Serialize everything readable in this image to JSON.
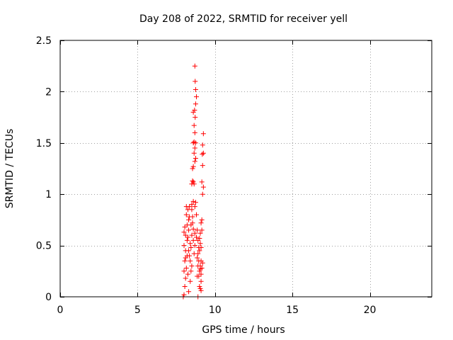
{
  "chart_data": {
    "type": "scatter",
    "title": "Day 208 of 2022, SRMTID for receiver yell",
    "xlabel": "GPS time / hours",
    "ylabel": "SRMTID / TECUs",
    "xlim": [
      0,
      24
    ],
    "ylim": [
      0,
      2.5
    ],
    "x_ticks": [
      0,
      5,
      10,
      15,
      20
    ],
    "x_tick_labels": [
      "0",
      "5",
      "10",
      "15",
      "20"
    ],
    "y_ticks": [
      0,
      0.5,
      1,
      1.5,
      2,
      2.5
    ],
    "y_tick_labels": [
      "0",
      "0.5",
      "1",
      "1.5",
      "2",
      "2.5"
    ],
    "grid": true,
    "marker": "+",
    "color": "#ff0000",
    "series": [
      {
        "name": "SRMTID",
        "points": [
          [
            7.95,
            0.0
          ],
          [
            8.0,
            0.02
          ],
          [
            8.05,
            0.1
          ],
          [
            8.1,
            0.18
          ],
          [
            8.0,
            0.25
          ],
          [
            8.15,
            0.28
          ],
          [
            8.05,
            0.35
          ],
          [
            8.2,
            0.4
          ],
          [
            8.1,
            0.45
          ],
          [
            8.0,
            0.5
          ],
          [
            8.2,
            0.55
          ],
          [
            8.1,
            0.6
          ],
          [
            8.0,
            0.63
          ],
          [
            8.3,
            0.65
          ],
          [
            8.2,
            0.7
          ],
          [
            8.3,
            0.75
          ],
          [
            8.15,
            0.8
          ],
          [
            8.25,
            0.85
          ],
          [
            8.35,
            0.88
          ],
          [
            8.4,
            0.52
          ],
          [
            8.3,
            0.45
          ],
          [
            8.4,
            0.35
          ],
          [
            8.5,
            0.3
          ],
          [
            8.45,
            0.25
          ],
          [
            8.5,
            0.6
          ],
          [
            8.45,
            0.7
          ],
          [
            8.55,
            0.78
          ],
          [
            8.5,
            0.9
          ],
          [
            8.6,
            0.93
          ],
          [
            8.7,
            0.88
          ],
          [
            8.75,
            0.92
          ],
          [
            8.6,
            0.55
          ],
          [
            8.7,
            0.62
          ],
          [
            8.65,
            0.42
          ],
          [
            8.7,
            0.5
          ],
          [
            8.8,
            0.58
          ],
          [
            8.5,
            1.1
          ],
          [
            8.55,
            1.13
          ],
          [
            8.6,
            1.12
          ],
          [
            8.65,
            1.1
          ],
          [
            8.55,
            1.25
          ],
          [
            8.6,
            1.27
          ],
          [
            8.7,
            1.32
          ],
          [
            8.75,
            1.35
          ],
          [
            8.65,
            1.4
          ],
          [
            8.7,
            1.45
          ],
          [
            8.6,
            1.5
          ],
          [
            8.65,
            1.51
          ],
          [
            8.75,
            1.5
          ],
          [
            8.7,
            1.6
          ],
          [
            8.65,
            1.67
          ],
          [
            8.72,
            1.75
          ],
          [
            8.6,
            1.8
          ],
          [
            8.68,
            1.82
          ],
          [
            8.75,
            1.88
          ],
          [
            8.8,
            1.95
          ],
          [
            8.75,
            2.02
          ],
          [
            8.72,
            2.1
          ],
          [
            8.7,
            2.25
          ],
          [
            8.8,
            0.8
          ],
          [
            8.85,
            0.65
          ],
          [
            8.9,
            0.55
          ],
          [
            8.9,
            0.42
          ],
          [
            8.85,
            0.38
          ],
          [
            8.9,
            0.3
          ],
          [
            8.95,
            0.2
          ],
          [
            9.0,
            0.1
          ],
          [
            9.05,
            0.08
          ],
          [
            9.1,
            0.06
          ],
          [
            8.9,
            0.0
          ],
          [
            9.0,
            0.25
          ],
          [
            9.05,
            0.3
          ],
          [
            9.1,
            0.35
          ],
          [
            9.15,
            0.28
          ],
          [
            9.2,
            0.33
          ],
          [
            9.1,
            0.22
          ],
          [
            9.0,
            0.45
          ],
          [
            9.05,
            0.52
          ],
          [
            9.1,
            0.48
          ],
          [
            9.15,
            0.65
          ],
          [
            9.1,
            0.72
          ],
          [
            9.15,
            0.75
          ],
          [
            9.05,
            0.62
          ],
          [
            9.2,
            1.0
          ],
          [
            9.25,
            1.07
          ],
          [
            9.15,
            1.12
          ],
          [
            9.2,
            1.28
          ],
          [
            9.18,
            1.39
          ],
          [
            9.25,
            1.4
          ],
          [
            9.2,
            1.48
          ],
          [
            9.25,
            1.59
          ],
          [
            9.0,
            0.57
          ],
          [
            8.95,
            0.48
          ],
          [
            8.95,
            0.35
          ],
          [
            9.1,
            0.15
          ],
          [
            9.05,
            0.27
          ],
          [
            8.85,
            0.2
          ],
          [
            8.4,
            0.15
          ],
          [
            8.3,
            0.05
          ],
          [
            8.25,
            0.22
          ],
          [
            8.35,
            0.4
          ],
          [
            8.45,
            0.48
          ],
          [
            8.1,
            0.38
          ],
          [
            8.05,
            0.68
          ],
          [
            8.25,
            0.58
          ],
          [
            8.55,
            0.72
          ],
          [
            8.15,
            0.88
          ],
          [
            8.35,
            0.78
          ],
          [
            8.5,
            0.85
          ],
          [
            8.6,
            0.66
          ]
        ]
      }
    ]
  }
}
